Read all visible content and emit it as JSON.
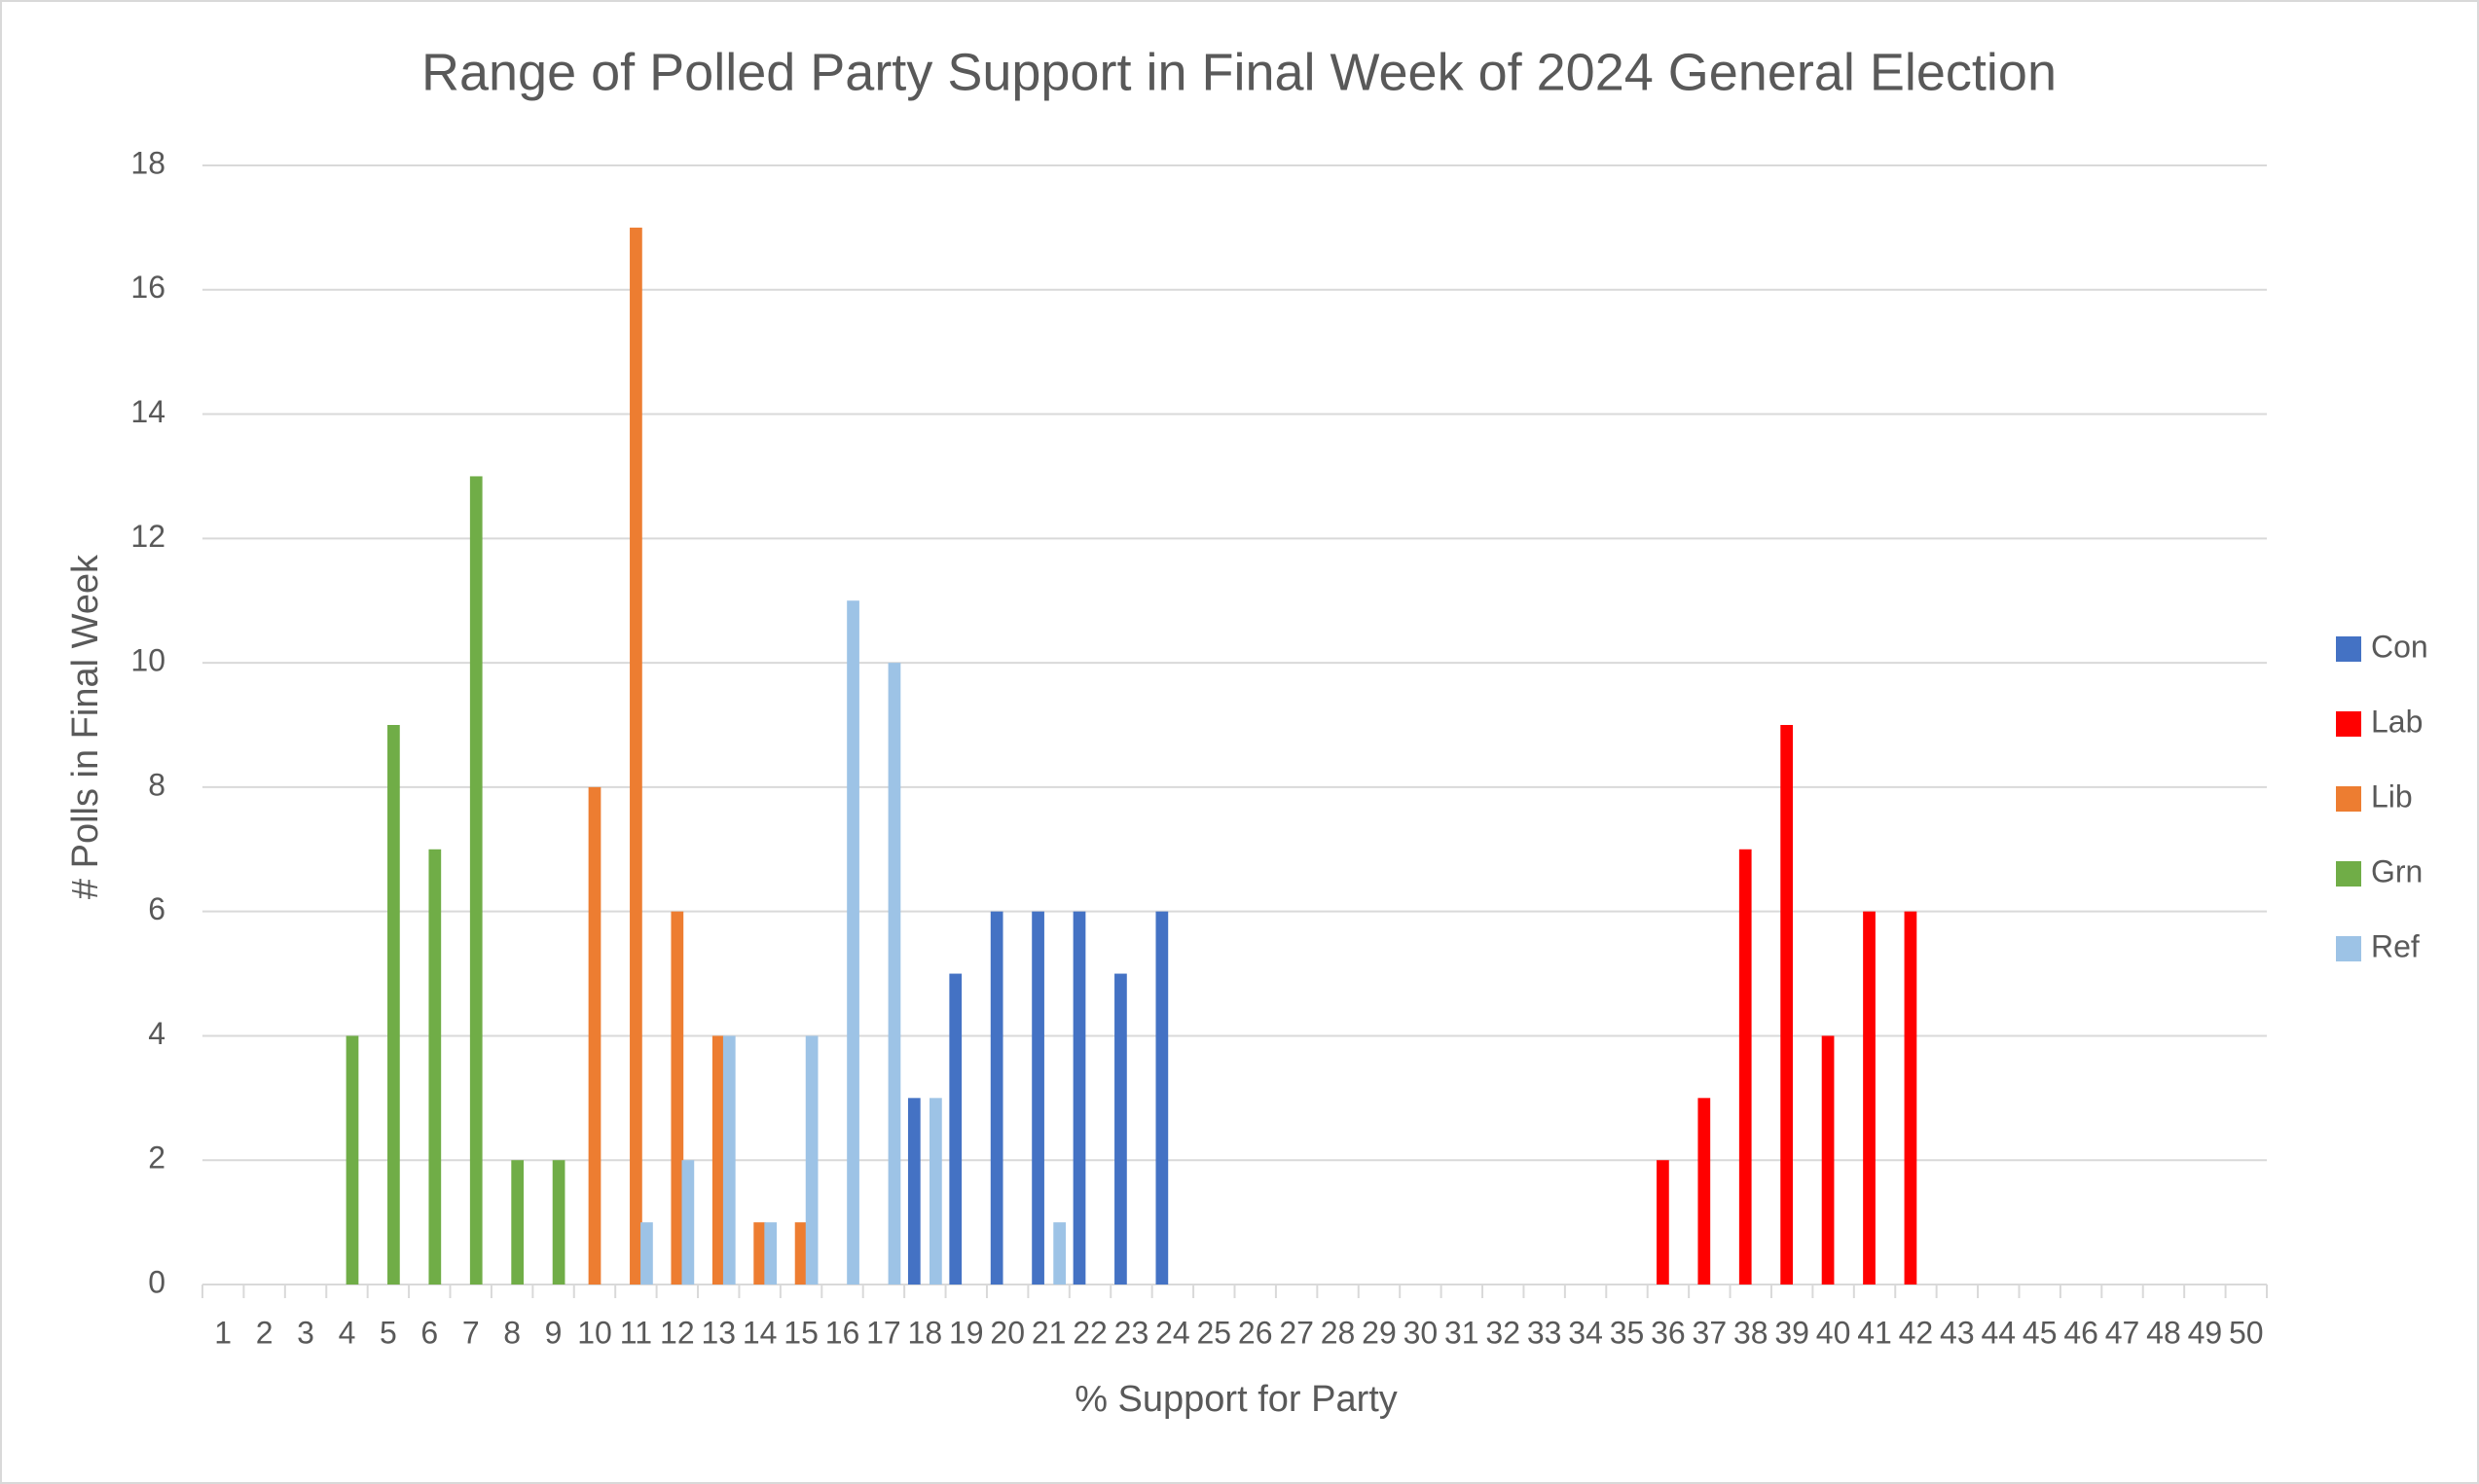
{
  "chart_data": {
    "type": "bar",
    "title": "Range of Polled Party Support in Final Week of 2024 General Election",
    "x_label": "% Support for Party",
    "y_label": "# Polls in Final Week",
    "categories": [
      1,
      2,
      3,
      4,
      5,
      6,
      7,
      8,
      9,
      10,
      11,
      12,
      13,
      14,
      15,
      16,
      17,
      18,
      19,
      20,
      21,
      22,
      23,
      24,
      25,
      26,
      27,
      28,
      29,
      30,
      31,
      32,
      33,
      34,
      35,
      36,
      37,
      38,
      39,
      40,
      41,
      42,
      43,
      44,
      45,
      46,
      47,
      48,
      49,
      50
    ],
    "series": [
      {
        "name": "Con",
        "color": "#4472c4",
        "values": [
          0,
          0,
          0,
          0,
          0,
          0,
          0,
          0,
          0,
          0,
          0,
          0,
          0,
          0,
          0,
          0,
          0,
          3,
          5,
          6,
          6,
          6,
          5,
          6,
          0,
          0,
          0,
          0,
          0,
          0,
          0,
          0,
          0,
          0,
          0,
          0,
          0,
          0,
          0,
          0,
          0,
          0,
          0,
          0,
          0,
          0,
          0,
          0,
          0,
          0
        ]
      },
      {
        "name": "Lab",
        "color": "#ff0000",
        "values": [
          0,
          0,
          0,
          0,
          0,
          0,
          0,
          0,
          0,
          0,
          0,
          0,
          0,
          0,
          0,
          0,
          0,
          0,
          0,
          0,
          0,
          0,
          0,
          0,
          0,
          0,
          0,
          0,
          0,
          0,
          0,
          0,
          0,
          0,
          0,
          2,
          3,
          7,
          9,
          4,
          6,
          6,
          0,
          0,
          0,
          0,
          0,
          0,
          0,
          0
        ]
      },
      {
        "name": "Lib",
        "color": "#ed7d31",
        "values": [
          0,
          0,
          0,
          0,
          0,
          0,
          0,
          0,
          0,
          8,
          17,
          6,
          4,
          1,
          1,
          0,
          0,
          0,
          0,
          0,
          0,
          0,
          0,
          0,
          0,
          0,
          0,
          0,
          0,
          0,
          0,
          0,
          0,
          0,
          0,
          0,
          0,
          0,
          0,
          0,
          0,
          0,
          0,
          0,
          0,
          0,
          0,
          0,
          0,
          0
        ]
      },
      {
        "name": "Grn",
        "color": "#70ad47",
        "values": [
          0,
          0,
          0,
          4,
          9,
          7,
          13,
          2,
          2,
          0,
          0,
          0,
          0,
          0,
          0,
          0,
          0,
          0,
          0,
          0,
          0,
          0,
          0,
          0,
          0,
          0,
          0,
          0,
          0,
          0,
          0,
          0,
          0,
          0,
          0,
          0,
          0,
          0,
          0,
          0,
          0,
          0,
          0,
          0,
          0,
          0,
          0,
          0,
          0,
          0
        ]
      },
      {
        "name": "Ref",
        "color": "#9dc3e6",
        "values": [
          0,
          0,
          0,
          0,
          0,
          0,
          0,
          0,
          0,
          0,
          1,
          2,
          4,
          1,
          4,
          11,
          10,
          3,
          0,
          0,
          1,
          0,
          0,
          0,
          0,
          0,
          0,
          0,
          0,
          0,
          0,
          0,
          0,
          0,
          0,
          0,
          0,
          0,
          0,
          0,
          0,
          0,
          0,
          0,
          0,
          0,
          0,
          0,
          0,
          0
        ]
      }
    ],
    "ylim": [
      0,
      18
    ],
    "yticks": [
      0,
      2,
      4,
      6,
      8,
      10,
      12,
      14,
      16,
      18
    ],
    "grid": true,
    "legend": "right"
  }
}
